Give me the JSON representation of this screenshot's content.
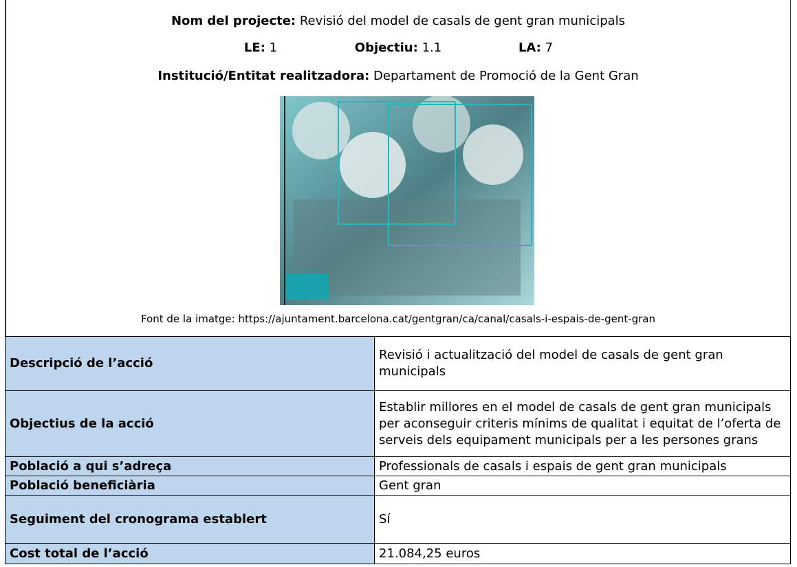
{
  "header": {
    "project": {
      "label": "Nom del projecte:",
      "value": "Revisió del model de casals de gent gran municipals"
    },
    "codes": [
      {
        "label": "LE:",
        "value": "1"
      },
      {
        "label": "Objectiu:",
        "value": "1.1"
      },
      {
        "label": "LA:",
        "value": "7"
      }
    ],
    "institution": {
      "label": "Institució/Entitat realitzadora:",
      "value": "Departament de Promoció de la Gent Gran"
    },
    "image_caption": "Font de la imatge: https://ajuntament.barcelona.cat/gentgran/ca/canal/casals-i-espais-de-gent-gran"
  },
  "table": {
    "rows": [
      [
        "Descripció de l’acció",
        "Revisió i actualització del model de casals de gent gran municipals"
      ],
      [
        "Objectius de la acció",
        "Establir millores en el model de casals de gent gran municipals per aconseguir criteris mínims de qualitat i equitat de l’oferta de serveis dels equipament municipals per a les persones grans"
      ],
      [
        "Població a qui s’adreça",
        "Professionals de casals i espais de gent gran municipals"
      ],
      [
        "Població beneficiària",
        "Gent gran"
      ],
      [
        "Seguiment del cronograma establert",
        "Sí"
      ],
      [
        "Cost total de l’acció",
        "21.084,25 euros"
      ]
    ]
  }
}
